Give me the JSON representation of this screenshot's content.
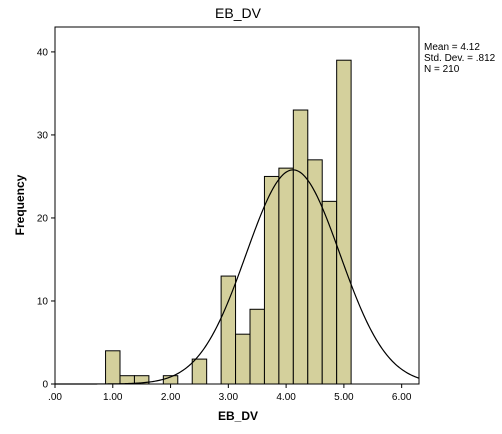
{
  "chart_data": {
    "type": "histogram",
    "title": "EB_DV",
    "xlabel": "EB_DV",
    "ylabel": "Frequency",
    "xlim": [
      0,
      6.3
    ],
    "ylim": [
      0,
      43
    ],
    "x_ticks": [
      0,
      1,
      2,
      3,
      4,
      5,
      6
    ],
    "x_tick_labels": [
      ".00",
      "1.00",
      "2.00",
      "3.00",
      "4.00",
      "5.00",
      "6.00"
    ],
    "y_ticks": [
      0,
      10,
      20,
      30,
      40
    ],
    "y_tick_labels": [
      "0",
      "10",
      "20",
      "30",
      "40"
    ],
    "bin_width": 0.25,
    "bins": [
      {
        "start": 0.875,
        "count": 4
      },
      {
        "start": 1.125,
        "count": 1
      },
      {
        "start": 1.375,
        "count": 1
      },
      {
        "start": 1.875,
        "count": 1
      },
      {
        "start": 2.375,
        "count": 3
      },
      {
        "start": 2.875,
        "count": 13
      },
      {
        "start": 3.125,
        "count": 6
      },
      {
        "start": 3.375,
        "count": 9
      },
      {
        "start": 3.625,
        "count": 25
      },
      {
        "start": 3.875,
        "count": 26
      },
      {
        "start": 4.125,
        "count": 33
      },
      {
        "start": 4.375,
        "count": 27
      },
      {
        "start": 4.625,
        "count": 22
      },
      {
        "start": 4.875,
        "count": 39
      }
    ],
    "normal_curve": {
      "mean": 4.12,
      "sd": 0.812,
      "n": 210
    },
    "bar_color": "#d4d09c",
    "bar_stroke": "#000000",
    "plot_background": "#ffffff",
    "outer_background": "#ffffff"
  },
  "stats": {
    "mean_text": "Mean = 4.12",
    "sd_text": "Std. Dev. = .812",
    "n_text": "N = 210"
  }
}
